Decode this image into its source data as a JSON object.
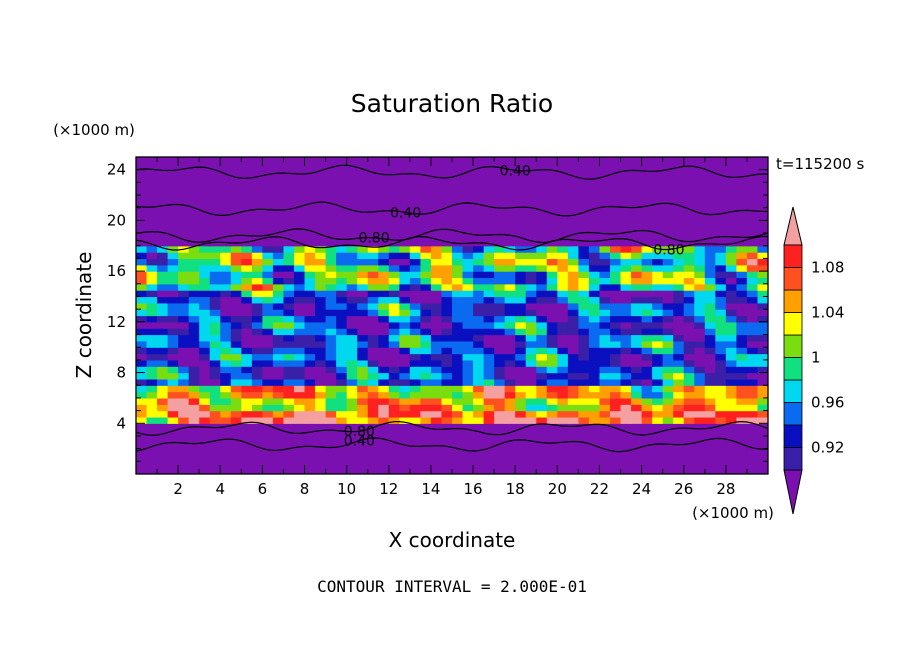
{
  "chart_data": {
    "type": "heatmap",
    "title": "Saturation Ratio",
    "xlabel": "X coordinate",
    "ylabel": "Z coordinate",
    "x_unit": "(×1000 m)",
    "y_unit": "(×1000 m)",
    "time_label": "t=115200 s",
    "footer": "CONTOUR INTERVAL = 2.000E-01",
    "xlim": [
      0,
      30
    ],
    "ylim": [
      0,
      25
    ],
    "x_ticks": [
      2,
      4,
      6,
      8,
      10,
      12,
      14,
      16,
      18,
      20,
      22,
      24,
      26,
      28
    ],
    "y_ticks": [
      4,
      8,
      12,
      16,
      20,
      24
    ],
    "colorbar": {
      "levels": [
        0.9,
        0.92,
        0.94,
        0.96,
        0.98,
        1.0,
        1.02,
        1.04,
        1.06,
        1.08,
        1.1
      ],
      "colors": [
        "#7a10b0",
        "#3a1fa8",
        "#0a10c0",
        "#0a6af0",
        "#00d8f0",
        "#10e080",
        "#7add10",
        "#ffff00",
        "#ffa000",
        "#ff5020",
        "#ff2020",
        "#f4a0a0"
      ],
      "tick_labels": [
        {
          "value": 0.92,
          "label": "0.92"
        },
        {
          "value": 0.96,
          "label": "0.96"
        },
        {
          "value": 1.0,
          "label": "1"
        },
        {
          "value": 1.04,
          "label": "1.04"
        },
        {
          "value": 1.08,
          "label": "1.08"
        }
      ]
    },
    "contour_lines": [
      {
        "label": "0.40",
        "z": 23.8,
        "label_x": 18.0
      },
      {
        "label": "0.40",
        "z": 20.9,
        "label_x": 12.8
      },
      {
        "label": "0.80",
        "z": 18.8,
        "label_x": 11.3
      },
      {
        "label": "0.80",
        "z": 18.2,
        "label_x": 25.3
      },
      {
        "label": "0.80",
        "z": 3.6,
        "label_x": 10.6
      },
      {
        "label": "0.40",
        "z": 2.3,
        "label_x": 10.6
      }
    ]
  }
}
